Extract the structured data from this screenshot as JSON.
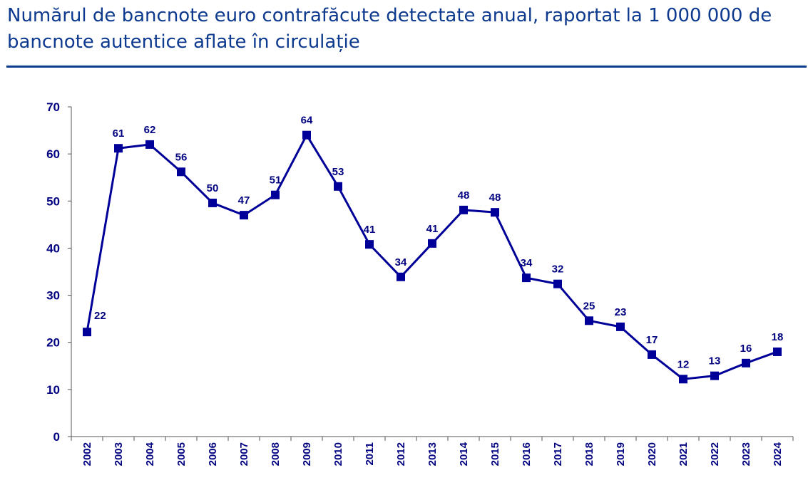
{
  "chart_data": {
    "type": "line",
    "title": "Numărul de bancnote euro contrafăcute detectate anual, raportat la 1 000 000 de bancnote autentice aflate în circulație",
    "xlabel": "",
    "ylabel": "",
    "ylim": [
      0,
      70
    ],
    "yticks": [
      "0",
      "10",
      "20",
      "30",
      "40",
      "50",
      "60",
      "70"
    ],
    "grid": false,
    "categories": [
      "2002",
      "2003",
      "2004",
      "2005",
      "2006",
      "2007",
      "2008",
      "2009",
      "2010",
      "2011",
      "2012",
      "2013",
      "2014",
      "2015",
      "2016",
      "2017",
      "2018",
      "2019",
      "2020",
      "2021",
      "2022",
      "2023",
      "2024"
    ],
    "values": [
      22.2,
      61.2,
      62.0,
      56.2,
      49.6,
      47.0,
      51.3,
      64.0,
      53.1,
      40.8,
      33.9,
      41.0,
      48.1,
      47.6,
      33.7,
      32.4,
      24.6,
      23.3,
      17.4,
      12.2,
      12.9,
      15.6,
      18.0
    ],
    "labels": [
      "22",
      "61",
      "62",
      "56",
      "50",
      "47",
      "51",
      "64",
      "53",
      "41",
      "34",
      "41",
      "48",
      "48",
      "34",
      "32",
      "25",
      "23",
      "17",
      "12",
      "13",
      "16",
      "18"
    ],
    "colors": {
      "line": "#000099",
      "text": "#000080",
      "title": "#0d3a8f"
    }
  }
}
